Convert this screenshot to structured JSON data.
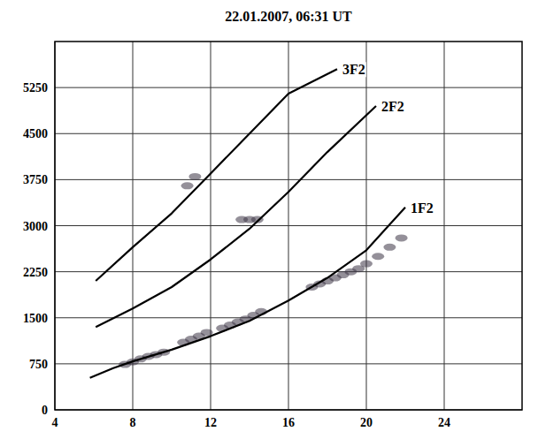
{
  "chart_data": {
    "type": "line",
    "title": "22.01.2007, 06:31 UT",
    "xlim": [
      4,
      28
    ],
    "xticks": [
      4,
      8,
      12,
      16,
      20,
      24
    ],
    "ylim": [
      0,
      6000
    ],
    "yticks": [
      0,
      750,
      1500,
      2250,
      3000,
      3750,
      4500,
      5250
    ],
    "grid": true,
    "series": [
      {
        "name": "1F2",
        "color": "#000000",
        "line_style": "solid",
        "x": [
          5.8,
          7,
          8,
          10,
          12,
          14,
          16,
          18,
          20,
          22
        ],
        "values": [
          520,
          680,
          790,
          980,
          1200,
          1450,
          1780,
          2150,
          2600,
          3300
        ]
      },
      {
        "name": "2F2",
        "color": "#000000",
        "line_style": "solid",
        "x": [
          6.1,
          8,
          10,
          12,
          14,
          16,
          18,
          20.5
        ],
        "values": [
          1350,
          1650,
          2000,
          2450,
          2950,
          3550,
          4200,
          4950
        ]
      },
      {
        "name": "3F2",
        "color": "#000000",
        "line_style": "solid",
        "x": [
          6.1,
          8,
          10,
          12,
          14,
          16,
          18.5
        ],
        "values": [
          2100,
          2650,
          3200,
          3850,
          4500,
          5150,
          5550
        ]
      },
      {
        "type": "scatter",
        "color": "#3d3545",
        "marker": "circle",
        "x": [
          7.6,
          8.0,
          8.4,
          8.8,
          9.2,
          9.6,
          10.6,
          11.0,
          11.4,
          11.8,
          12.6,
          13.0,
          13.4,
          13.8,
          14.2,
          14.6,
          17.2,
          17.6,
          18.0,
          18.4,
          18.8,
          19.2,
          19.6,
          20.0,
          20.6,
          21.2,
          21.8,
          10.8,
          11.2,
          13.6,
          14.0,
          14.4
        ],
        "values": [
          740,
          780,
          830,
          870,
          900,
          940,
          1100,
          1150,
          1200,
          1260,
          1330,
          1380,
          1430,
          1480,
          1540,
          1600,
          2000,
          2050,
          2100,
          2150,
          2200,
          2250,
          2300,
          2380,
          2500,
          2650,
          2800,
          3650,
          3800,
          3100,
          3100,
          3100
        ]
      }
    ]
  }
}
